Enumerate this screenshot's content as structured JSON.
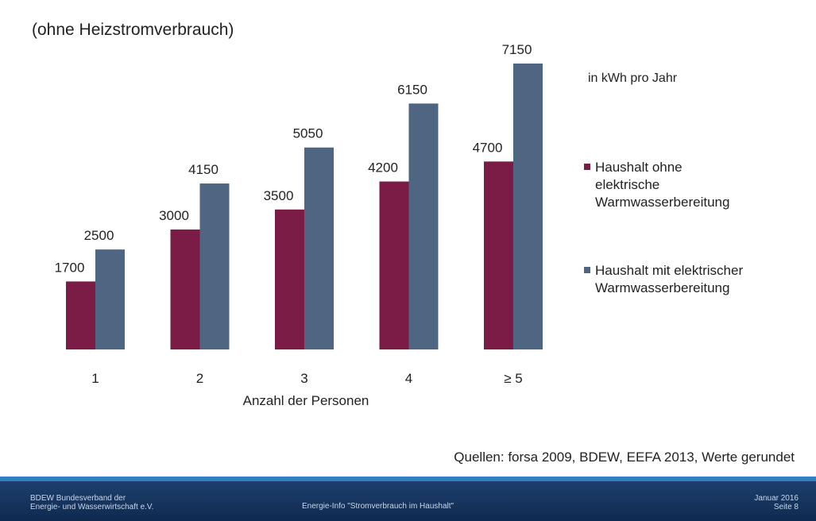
{
  "chart_data": {
    "type": "bar",
    "title": "(ohne Heizstromverbrauch)",
    "unit_note": "in kWh pro Jahr",
    "x_label": "Anzahl der Personen",
    "source": "Quellen: forsa 2009, BDEW, EEFA 2013, Werte gerundet",
    "categories": [
      "1",
      "2",
      "3",
      "4",
      "≥ 5"
    ],
    "series": [
      {
        "name": "Haushalt ohne\nelektrische\nWarmwasserbereitung",
        "color": "#7a1c45",
        "values": [
          1700,
          3000,
          3500,
          4200,
          4700
        ]
      },
      {
        "name": "Haushalt mit elektrischer\nWarmwasserbereitung",
        "color": "#4e6682",
        "values": [
          2500,
          4150,
          5050,
          6150,
          7150
        ]
      }
    ]
  },
  "footer": {
    "left": "BDEW Bundesverband der\nEnergie- und Wasserwirtschaft e.V.",
    "center": "Energie-Info \"Stromverbrauch im Haushalt\"",
    "right": "Januar 2016\nSeite 8"
  }
}
